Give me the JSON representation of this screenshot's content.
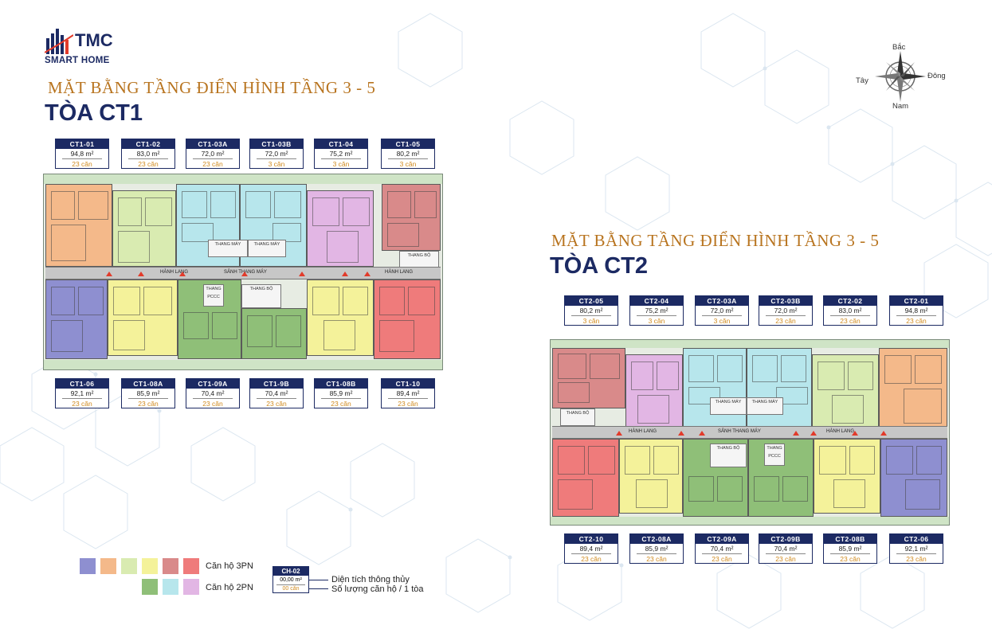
{
  "brand": {
    "name": "TMC",
    "tagline": "SMART HOME"
  },
  "compass": {
    "north": "Bắc",
    "south": "Nam",
    "east": "Đông",
    "west": "Tây"
  },
  "ct1": {
    "subtitle": "MẶT BẰNG TẦNG ĐIỂN HÌNH TẦNG 3 - 5",
    "title": "TÒA CT1",
    "top_units": [
      {
        "code": "CT1-01",
        "area": "94,8 m²",
        "count": "23 căn"
      },
      {
        "code": "CT1-02",
        "area": "83,0 m²",
        "count": "23 căn"
      },
      {
        "code": "CT1-03A",
        "area": "72,0 m²",
        "count": "23 căn"
      },
      {
        "code": "CT1-03B",
        "area": "72,0 m²",
        "count": "3 căn"
      },
      {
        "code": "CT1-04",
        "area": "75,2 m²",
        "count": "3 căn"
      },
      {
        "code": "CT1-05",
        "area": "80,2 m²",
        "count": "3 căn"
      }
    ],
    "bottom_units": [
      {
        "code": "CT1-06",
        "area": "92,1 m²",
        "count": "23 căn"
      },
      {
        "code": "CT1-08A",
        "area": "85,9 m²",
        "count": "23 căn"
      },
      {
        "code": "CT1-09A",
        "area": "70,4 m²",
        "count": "23 căn"
      },
      {
        "code": "CT1-9B",
        "area": "70,4 m²",
        "count": "23 căn"
      },
      {
        "code": "CT1-08B",
        "area": "85,9 m²",
        "count": "23 căn"
      },
      {
        "code": "CT1-10",
        "area": "89,4 m²",
        "count": "23 căn"
      }
    ],
    "labels": {
      "corridor_left": "HÀNH LANG",
      "corridor_right": "HÀNH LANG",
      "lobby": "SẢNH THANG MÁY",
      "lift1": "THANG MÁY",
      "lift2": "THANG MÁY",
      "stair": "THANG BỘ",
      "stair2": "THANG BỘ",
      "fire": "THANG PCCC"
    }
  },
  "ct2": {
    "subtitle": "MẶT BẰNG TẦNG ĐIỂN HÌNH TẦNG 3 - 5",
    "title": "TÒA CT2",
    "top_units": [
      {
        "code": "CT2-05",
        "area": "80,2 m²",
        "count": "3 căn"
      },
      {
        "code": "CT2-04",
        "area": "75,2 m²",
        "count": "3 căn"
      },
      {
        "code": "CT2-03A",
        "area": "72,0 m²",
        "count": "3 căn"
      },
      {
        "code": "CT2-03B",
        "area": "72,0 m²",
        "count": "23 căn"
      },
      {
        "code": "CT2-02",
        "area": "83,0 m²",
        "count": "23 căn"
      },
      {
        "code": "CT2-01",
        "area": "94,8 m²",
        "count": "23 căn"
      }
    ],
    "bottom_units": [
      {
        "code": "CT2-10",
        "area": "89,4 m²",
        "count": "23 căn"
      },
      {
        "code": "CT2-08A",
        "area": "85,9 m²",
        "count": "23 căn"
      },
      {
        "code": "CT2-09A",
        "area": "70,4 m²",
        "count": "23 căn"
      },
      {
        "code": "CT2-09B",
        "area": "70,4 m²",
        "count": "23 căn"
      },
      {
        "code": "CT2-08B",
        "area": "85,9 m²",
        "count": "23 căn"
      },
      {
        "code": "CT2-06",
        "area": "92,1 m²",
        "count": "23 căn"
      }
    ],
    "labels": {
      "corridor_left": "HÀNH LANG",
      "corridor_right": "HÀNH LANG",
      "lobby": "SẢNH THANG MÁY",
      "lift1": "THANG MÁY",
      "lift2": "THANG MÁY",
      "stair": "THANG BỘ",
      "stair2": "THANG BỘ",
      "fire": "THANG PCCC"
    }
  },
  "legend": {
    "three_bed": "Căn hộ 3PN",
    "two_bed": "Căn hộ 2PN",
    "sample": {
      "code": "CH-02",
      "area": "00,00 m²",
      "count": "00 căn"
    },
    "area_note": "Diện tích thông thủy",
    "count_note": "Số lượng căn hộ / 1 tòa"
  },
  "colors": {
    "navy": "#1c2a63",
    "gold": "#b8741f",
    "purple": "#8e8fd0",
    "orange": "#f4b98a",
    "lightgreen": "#d9ebb1",
    "yellow": "#f4f29a",
    "dustyred": "#d98a8a",
    "red": "#ef7b7b",
    "green": "#8fbf78",
    "cyan": "#b7e6ec",
    "lilac": "#e2b6e4"
  }
}
